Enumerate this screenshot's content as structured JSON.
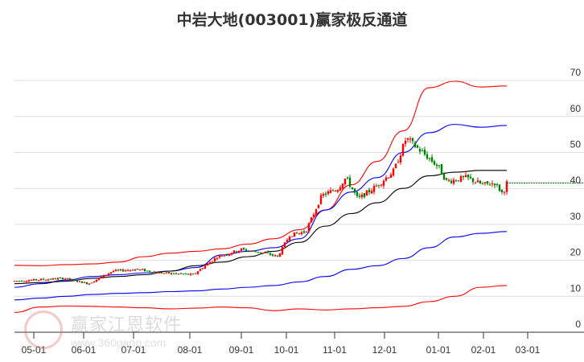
{
  "title": "中岩大地(003001)赢家极反通道",
  "watermark": {
    "text": "赢家江恩软件",
    "url": "www.360gann.com",
    "logo": "江赢恩家"
  },
  "colors": {
    "up": "#ff0000",
    "down": "#008000",
    "upper_outer": "#ff0000",
    "upper_inner": "#0000ff",
    "middle": "#000000",
    "lower_inner": "#0000ff",
    "lower_outer": "#ff0000",
    "last_price_line": "#008000",
    "grid": "#dddddd"
  },
  "chart_data": {
    "type": "candlestick",
    "title": "中岩大地(003001)赢家极反通道",
    "xlabel": "",
    "ylabel": "",
    "ylim": [
      0,
      70
    ],
    "y_ticks": [
      0,
      10,
      20,
      30,
      40,
      50,
      60,
      70
    ],
    "y_axis_position": "right",
    "x_ticks": [
      "05-01",
      "06-01",
      "07-01",
      "08-01",
      "09-01",
      "10-01",
      "11-01",
      "12-01",
      "01-01",
      "02-01",
      "03-01"
    ],
    "grid": true,
    "last_price": 41.5,
    "series": [
      {
        "name": "upper_outer",
        "color": "#ff0000",
        "values": [
          18.6,
          18.5,
          18.8,
          19.0,
          19.5,
          21.0,
          22.0,
          22.5,
          23.2,
          24.5,
          26.0,
          28.5,
          34.0,
          41.0,
          47.5,
          56.0,
          68.0,
          69.8,
          68.2,
          68.5
        ]
      },
      {
        "name": "upper_inner",
        "color": "#0000ff",
        "values": [
          12.5,
          13.5,
          14.5,
          15.5,
          16.0,
          16.5,
          17.0,
          18.0,
          21.5,
          22.5,
          23.5,
          26.0,
          34.0,
          39.0,
          43.0,
          50.0,
          55.5,
          57.8,
          57.0,
          57.5
        ]
      },
      {
        "name": "middle",
        "color": "#000000",
        "values": [
          13.5,
          13.8,
          14.2,
          15.0,
          15.5,
          16.0,
          17.0,
          18.5,
          19.5,
          21.0,
          22.5,
          25.0,
          29.5,
          33.0,
          36.0,
          40.0,
          43.5,
          44.5,
          45.0,
          45.0
        ]
      },
      {
        "name": "lower_inner",
        "color": "#0000ff",
        "values": [
          9.0,
          9.5,
          10.0,
          10.5,
          10.8,
          11.0,
          11.3,
          11.5,
          12.0,
          12.5,
          13.0,
          14.0,
          15.5,
          17.5,
          18.5,
          20.5,
          23.5,
          26.5,
          27.5,
          28.0
        ]
      },
      {
        "name": "lower_outer",
        "color": "#ff0000",
        "values": [
          5.5,
          7.0,
          7.3,
          7.2,
          7.0,
          6.8,
          6.5,
          6.7,
          7.0,
          6.8,
          6.0,
          6.5,
          6.2,
          6.5,
          6.8,
          7.2,
          8.5,
          10.0,
          12.5,
          13.0
        ]
      }
    ],
    "candles_summary": {
      "start_price": 14.0,
      "peak_price": 56.0,
      "peak_date_approx": "12-20",
      "end_price": 41.5,
      "low_end": 38.0
    }
  }
}
